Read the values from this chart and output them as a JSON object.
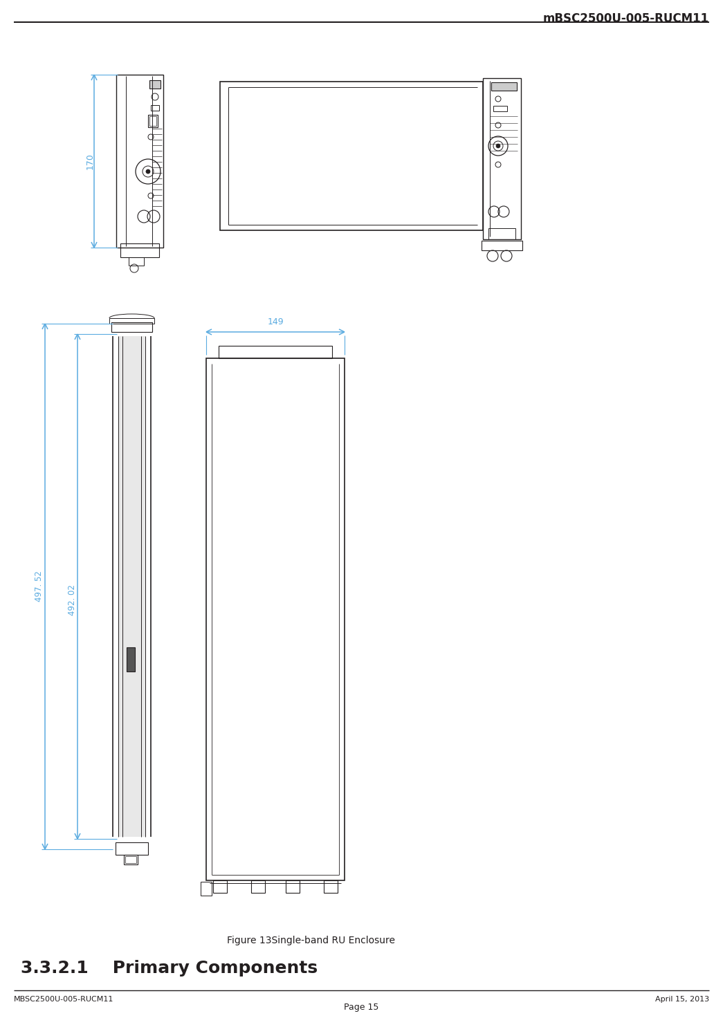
{
  "header_text": "mBSC2500U-005-RUCM11",
  "footer_left": "MBSC2500U-005-RUCM11",
  "footer_right": "April 15, 2013",
  "footer_center": "Page 15",
  "caption": "Figure 13Single-band RU Enclosure",
  "section_heading": "3.3.2.1    Primary Components",
  "dim_color": "#5aabe0",
  "line_color": "#231f20",
  "bg_color": "#ffffff",
  "dim_170": "170",
  "dim_149": "149",
  "dim_49752": "497. 52",
  "dim_49202": "492. 02"
}
